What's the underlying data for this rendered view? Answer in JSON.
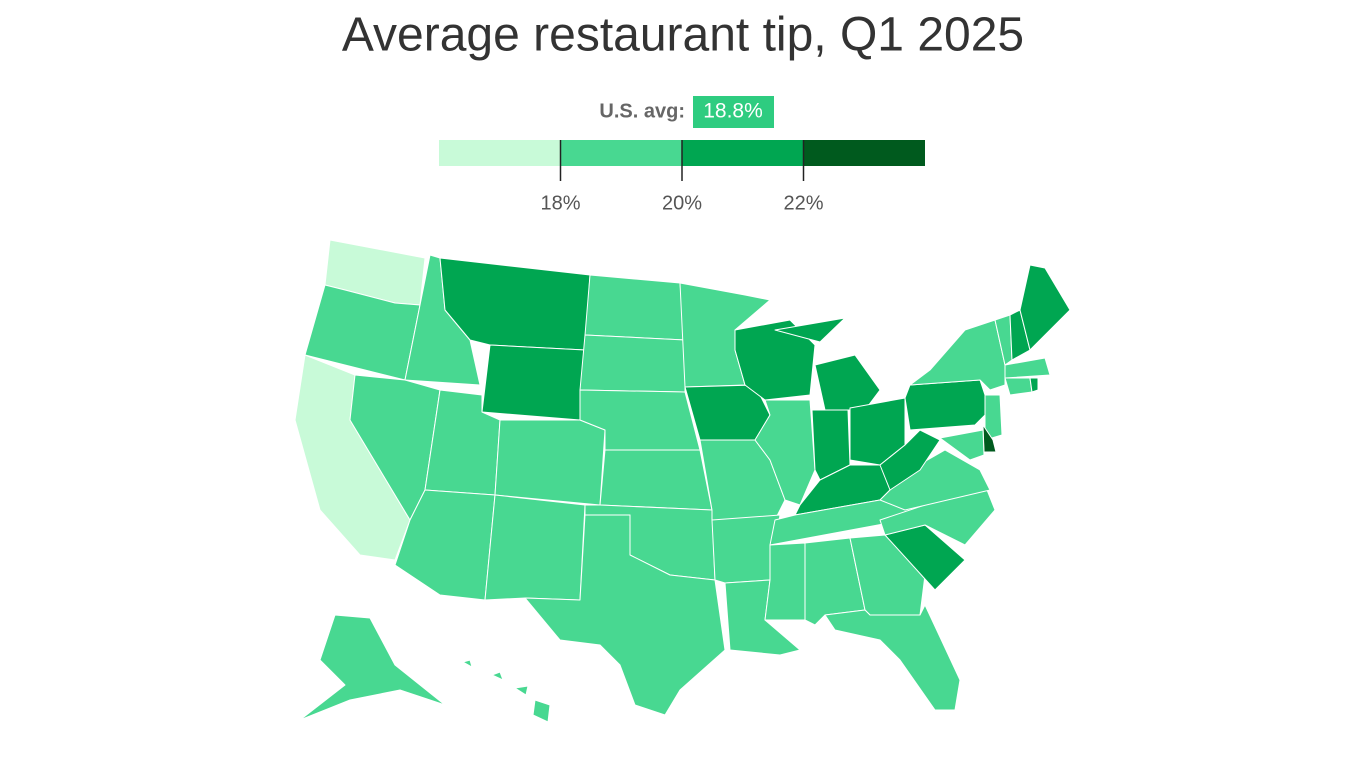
{
  "chart_data": {
    "type": "choropleth",
    "title": "Average restaurant tip, Q1 2025",
    "average": {
      "label": "U.S. avg:",
      "value": 18.8,
      "value_label": "18.8%",
      "color": "#2ecc80"
    },
    "legend": {
      "xlim": [
        16,
        24
      ],
      "xticks": [
        {
          "value": 18,
          "label": "18%"
        },
        {
          "value": 20,
          "label": "20%"
        },
        {
          "value": 22,
          "label": "22%"
        }
      ],
      "colors": [
        "#c8fad8",
        "#48d891",
        "#00a651",
        "#005a1e"
      ]
    }
  }
}
